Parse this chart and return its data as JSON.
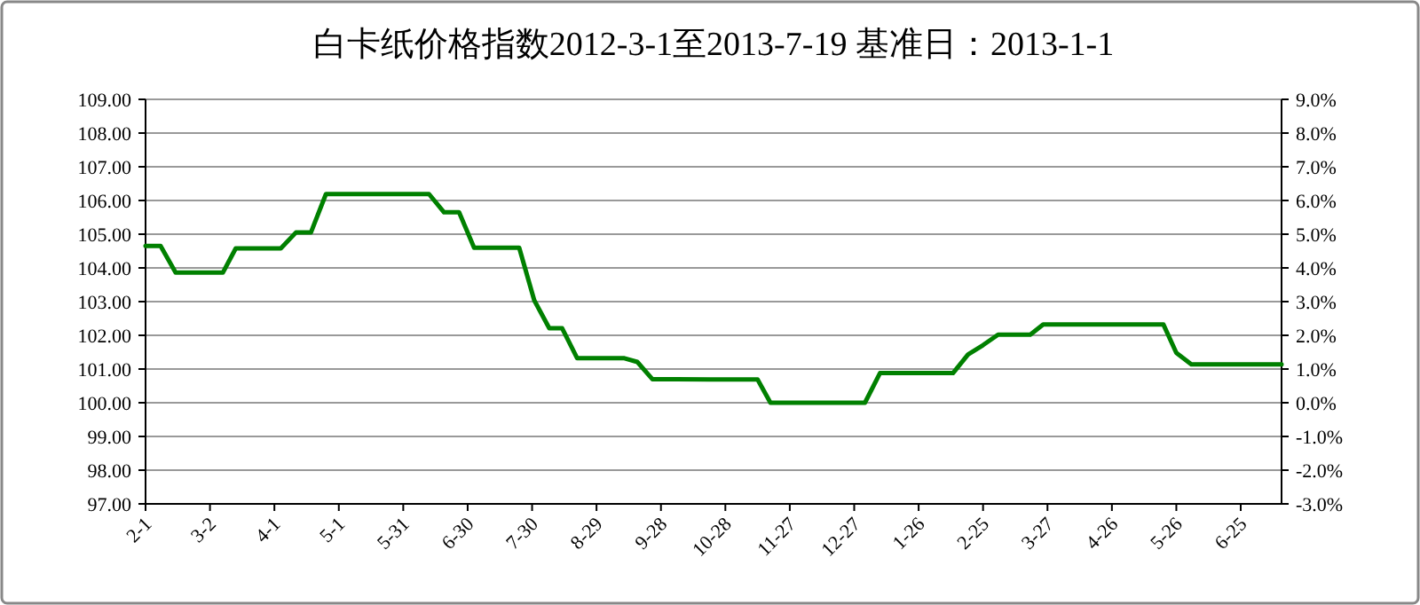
{
  "chart_data": {
    "type": "line",
    "title": "白卡纸价格指数2012-3-1至2013-7-19 基准日：2013-1-1",
    "x": [
      "2012-02-01",
      "2012-02-08",
      "2012-02-15",
      "2012-03-08",
      "2012-03-14",
      "2012-04-04",
      "2012-04-11",
      "2012-04-18",
      "2012-04-25",
      "2012-06-12",
      "2012-06-19",
      "2012-06-26",
      "2012-07-03",
      "2012-07-24",
      "2012-07-31",
      "2012-08-07",
      "2012-08-13",
      "2012-08-20",
      "2012-09-11",
      "2012-09-17",
      "2012-09-24",
      "2012-10-21",
      "2012-11-12",
      "2012-11-18",
      "2013-01-01",
      "2013-01-08",
      "2013-02-11",
      "2013-02-18",
      "2013-02-25",
      "2013-03-04",
      "2013-03-19",
      "2013-03-25",
      "2013-05-20",
      "2013-05-26",
      "2013-06-02",
      "2013-07-14"
    ],
    "values": [
      104.65,
      104.65,
      103.86,
      103.86,
      104.58,
      104.58,
      105.05,
      105.05,
      106.19,
      106.19,
      105.65,
      105.65,
      104.6,
      104.6,
      103.04,
      102.21,
      102.21,
      101.32,
      101.32,
      101.21,
      100.7,
      100.69,
      100.69,
      100.0,
      100.0,
      100.88,
      100.88,
      101.43,
      101.71,
      102.02,
      102.02,
      102.32,
      102.32,
      101.48,
      101.14,
      101.14
    ],
    "color": "#008000",
    "xlim": [
      "2012-02-01",
      "2013-07-14"
    ],
    "xticks": [
      {
        "value": "2012-02-01",
        "label": "2-1"
      },
      {
        "value": "2012-03-02",
        "label": "3-2"
      },
      {
        "value": "2012-04-01",
        "label": "4-1"
      },
      {
        "value": "2012-05-01",
        "label": "5-1"
      },
      {
        "value": "2012-05-31",
        "label": "5-31"
      },
      {
        "value": "2012-06-30",
        "label": "6-30"
      },
      {
        "value": "2012-07-30",
        "label": "7-30"
      },
      {
        "value": "2012-08-29",
        "label": "8-29"
      },
      {
        "value": "2012-09-28",
        "label": "9-28"
      },
      {
        "value": "2012-10-28",
        "label": "10-28"
      },
      {
        "value": "2012-11-27",
        "label": "11-27"
      },
      {
        "value": "2012-12-27",
        "label": "12-27"
      },
      {
        "value": "2013-01-26",
        "label": "1-26"
      },
      {
        "value": "2013-02-25",
        "label": "2-25"
      },
      {
        "value": "2013-03-27",
        "label": "3-27"
      },
      {
        "value": "2013-04-26",
        "label": "4-26"
      },
      {
        "value": "2013-05-26",
        "label": "5-26"
      },
      {
        "value": "2013-06-25",
        "label": "6-25"
      }
    ],
    "ylim": [
      97,
      109
    ],
    "yticks": [
      {
        "value": 97,
        "label": "97.00"
      },
      {
        "value": 98,
        "label": "98.00"
      },
      {
        "value": 99,
        "label": "99.00"
      },
      {
        "value": 100,
        "label": "100.00"
      },
      {
        "value": 101,
        "label": "101.00"
      },
      {
        "value": 102,
        "label": "102.00"
      },
      {
        "value": 103,
        "label": "103.00"
      },
      {
        "value": 104,
        "label": "104.00"
      },
      {
        "value": 105,
        "label": "105.00"
      },
      {
        "value": 106,
        "label": "106.00"
      },
      {
        "value": 107,
        "label": "107.00"
      },
      {
        "value": 108,
        "label": "108.00"
      },
      {
        "value": 109,
        "label": "109.00"
      }
    ],
    "y2lim": [
      -3,
      9
    ],
    "y2ticks": [
      {
        "value": -3,
        "label": "-3.0%"
      },
      {
        "value": -2,
        "label": "-2.0%"
      },
      {
        "value": -1,
        "label": "-1.0%"
      },
      {
        "value": 0,
        "label": "0.0%"
      },
      {
        "value": 1,
        "label": "1.0%"
      },
      {
        "value": 2,
        "label": "2.0%"
      },
      {
        "value": 3,
        "label": "3.0%"
      },
      {
        "value": 4,
        "label": "4.0%"
      },
      {
        "value": 5,
        "label": "5.0%"
      },
      {
        "value": 6,
        "label": "6.0%"
      },
      {
        "value": 7,
        "label": "7.0%"
      },
      {
        "value": 8,
        "label": "8.0%"
      },
      {
        "value": 9,
        "label": "9.0%"
      }
    ],
    "grid": "y",
    "line_style": "solid",
    "marker": "none"
  }
}
